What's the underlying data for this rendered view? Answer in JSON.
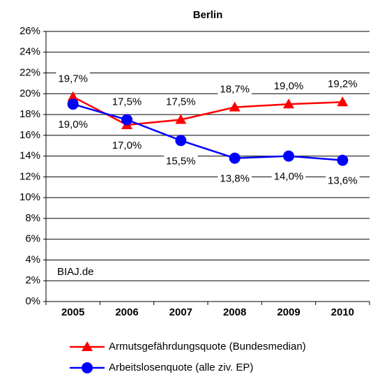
{
  "chart_data": {
    "type": "line",
    "title": "Berlin",
    "categories": [
      "2005",
      "2006",
      "2007",
      "2008",
      "2009",
      "2010"
    ],
    "series": [
      {
        "name": "Armutsgefährdungsquote (Bundesmedian)",
        "color": "#ff0000",
        "marker": "triangle",
        "values": [
          19.7,
          17.0,
          17.5,
          18.7,
          19.0,
          19.2
        ],
        "value_labels": [
          "19,7%",
          "17,0%",
          "17,5%",
          "18,7%",
          "19,0%",
          "19,2%"
        ]
      },
      {
        "name": "Arbeitslosenquote (alle ziv. EP)",
        "color": "#0000ff",
        "marker": "circle",
        "values": [
          19.0,
          17.5,
          15.5,
          13.8,
          14.0,
          13.6
        ],
        "value_labels": [
          "19,0%",
          "17,5%",
          "15,5%",
          "13,8%",
          "14,0%",
          "13,6%"
        ]
      }
    ],
    "ylim": [
      0,
      26
    ],
    "yticks": [
      {
        "value": 0,
        "label": "0%"
      },
      {
        "value": 2,
        "label": "2%"
      },
      {
        "value": 4,
        "label": "4%"
      },
      {
        "value": 6,
        "label": "6%"
      },
      {
        "value": 8,
        "label": "8%"
      },
      {
        "value": 10,
        "label": "10%"
      },
      {
        "value": 12,
        "label": "12%"
      },
      {
        "value": 14,
        "label": "14%"
      },
      {
        "value": 16,
        "label": "16%"
      },
      {
        "value": 18,
        "label": "18%"
      },
      {
        "value": 20,
        "label": "20%"
      },
      {
        "value": 22,
        "label": "22%"
      },
      {
        "value": 24,
        "label": "24%"
      },
      {
        "value": 26,
        "label": "26%"
      }
    ],
    "grid": true,
    "annotation": "BIAJ.de",
    "legend": "bottom"
  }
}
